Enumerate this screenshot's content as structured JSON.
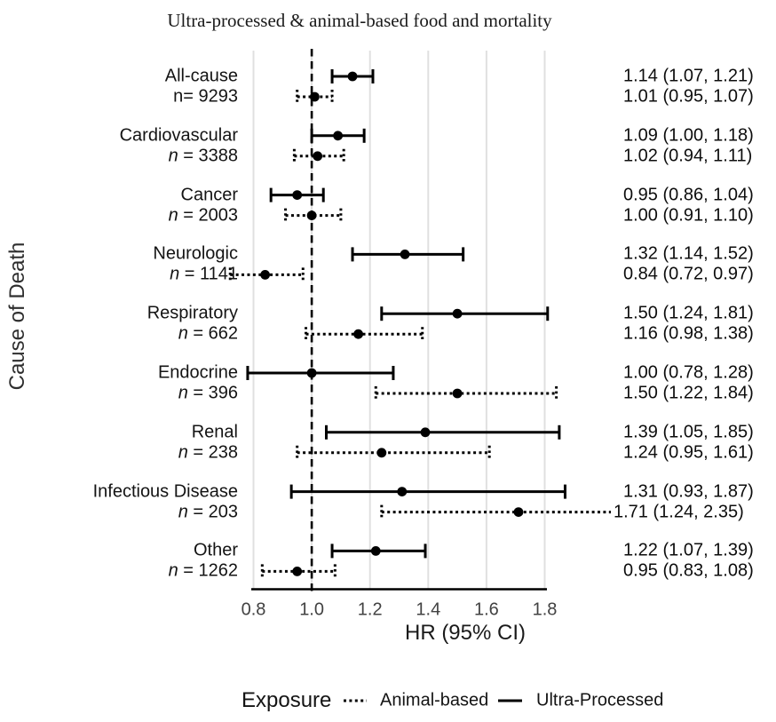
{
  "title": "Ultra-processed & animal-based food and mortality",
  "chart_data": {
    "type": "scatter",
    "subtype": "forest-plot-with-error-bars",
    "title": "Ultra-processed & animal-based food and mortality",
    "xlabel": "HR (95% CI)",
    "ylabel": "Cause of Death",
    "xlim": [
      0.8,
      1.8
    ],
    "x_tick_values": [
      0.8,
      1.0,
      1.2,
      1.4,
      1.6,
      1.8
    ],
    "x_tick_labels": [
      "0.8",
      "1.0",
      "1.2",
      "1.4",
      "1.6",
      "1.8"
    ],
    "reference_line_x": 1.0,
    "grid": "vertical gridlines at each x tick, no horizontal gridlines",
    "legend": {
      "title": "Exposure",
      "position": "bottom",
      "items": [
        {
          "label": "Animal-based",
          "line_style": "dotted"
        },
        {
          "label": "Ultra-Processed",
          "line_style": "solid"
        }
      ]
    },
    "row_order_note": "each category shows Ultra-Processed (solid) on top row and Animal-based (dotted) on bottom row",
    "categories": [
      {
        "name": "All-cause",
        "n_label": "n= 9293",
        "n_italic": false,
        "ultra_processed": {
          "hr": 1.14,
          "ci_low": 1.07,
          "ci_high": 1.21,
          "label": "1.14 (1.07, 1.21)"
        },
        "animal_based": {
          "hr": 1.01,
          "ci_low": 0.95,
          "ci_high": 1.07,
          "label": "1.01 (0.95, 1.07)"
        }
      },
      {
        "name": "Cardiovascular",
        "n_label": "n = 3388",
        "n_italic": true,
        "ultra_processed": {
          "hr": 1.09,
          "ci_low": 1.0,
          "ci_high": 1.18,
          "label": "1.09 (1.00, 1.18)"
        },
        "animal_based": {
          "hr": 1.02,
          "ci_low": 0.94,
          "ci_high": 1.11,
          "label": "1.02 (0.94, 1.11)"
        }
      },
      {
        "name": "Cancer",
        "n_label": "n = 2003",
        "n_italic": true,
        "ultra_processed": {
          "hr": 0.95,
          "ci_low": 0.86,
          "ci_high": 1.04,
          "label": "0.95 (0.86, 1.04)"
        },
        "animal_based": {
          "hr": 1.0,
          "ci_low": 0.91,
          "ci_high": 1.1,
          "label": "1.00 (0.91, 1.10)"
        }
      },
      {
        "name": "Neurologic",
        "n_label": "n = 1141",
        "n_italic": true,
        "ultra_processed": {
          "hr": 1.32,
          "ci_low": 1.14,
          "ci_high": 1.52,
          "label": "1.32 (1.14, 1.52)"
        },
        "animal_based": {
          "hr": 0.84,
          "ci_low": 0.72,
          "ci_high": 0.97,
          "label": "0.84 (0.72, 0.97)"
        }
      },
      {
        "name": "Respiratory",
        "n_label": "n = 662",
        "n_italic": true,
        "ultra_processed": {
          "hr": 1.5,
          "ci_low": 1.24,
          "ci_high": 1.81,
          "label": "1.50 (1.24, 1.81)"
        },
        "animal_based": {
          "hr": 1.16,
          "ci_low": 0.98,
          "ci_high": 1.38,
          "label": "1.16 (0.98, 1.38)"
        }
      },
      {
        "name": "Endocrine",
        "n_label": "n = 396",
        "n_italic": true,
        "ultra_processed": {
          "hr": 1.0,
          "ci_low": 0.78,
          "ci_high": 1.28,
          "label": "1.00 (0.78, 1.28)"
        },
        "animal_based": {
          "hr": 1.5,
          "ci_low": 1.22,
          "ci_high": 1.84,
          "label": "1.50 (1.22, 1.84)"
        }
      },
      {
        "name": "Renal",
        "n_label": "n = 238",
        "n_italic": true,
        "ultra_processed": {
          "hr": 1.39,
          "ci_low": 1.05,
          "ci_high": 1.85,
          "label": "1.39 (1.05, 1.85)"
        },
        "animal_based": {
          "hr": 1.24,
          "ci_low": 0.95,
          "ci_high": 1.61,
          "label": "1.24 (0.95, 1.61)"
        }
      },
      {
        "name": "Infectious Disease",
        "n_label": "n = 203",
        "n_italic": true,
        "ultra_processed": {
          "hr": 1.31,
          "ci_low": 0.93,
          "ci_high": 1.87,
          "label": "1.31 (0.93, 1.87)"
        },
        "animal_based": {
          "hr": 1.71,
          "ci_low": 1.24,
          "ci_high": 2.35,
          "label": "1.71 (1.24, 2.35)"
        }
      },
      {
        "name": "Other",
        "n_label": "n = 1262",
        "n_italic": true,
        "ultra_processed": {
          "hr": 1.22,
          "ci_low": 1.07,
          "ci_high": 1.39,
          "label": "1.22 (1.07, 1.39)"
        },
        "animal_based": {
          "hr": 0.95,
          "ci_low": 0.83,
          "ci_high": 1.08,
          "label": "0.95 (0.83, 1.08)"
        }
      }
    ],
    "colors": {
      "data": "#000000",
      "gridline": "#e0e0e0",
      "axis_line": "#000000",
      "tick_text": "#424242"
    }
  }
}
